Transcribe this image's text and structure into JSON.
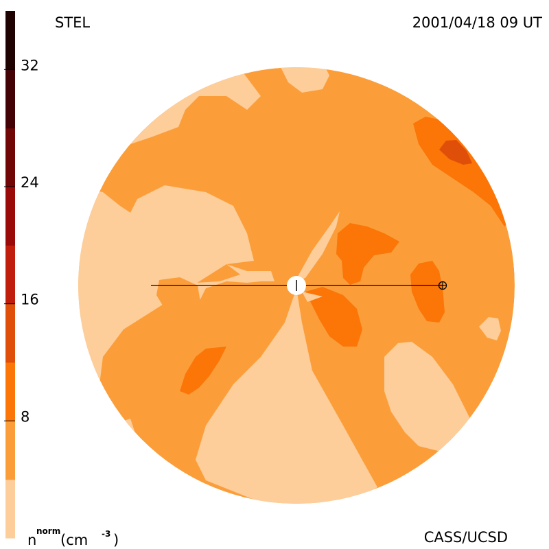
{
  "header": {
    "instrument": "STEL",
    "timestamp": "2001/04/18 09 UT"
  },
  "footer": {
    "credit": "CASS/UCSD",
    "unit_main": "n",
    "unit_sup": "norm",
    "unit_paren_open": " (cm",
    "unit_exp": "-3",
    "unit_paren_close": ")"
  },
  "chart_data": {
    "type": "heatmap",
    "title": "STEL",
    "subtitle": "2001/04/18 09 UT",
    "quantity": "n norm (cm^-3)",
    "colorbar": {
      "min": 0,
      "max": 36,
      "ticks": [
        8,
        16,
        24,
        32
      ],
      "tick_labels": [
        "8",
        "16",
        "24",
        "32"
      ],
      "levels": [
        {
          "from": 0,
          "to": 4,
          "color": "#fdcd9a"
        },
        {
          "from": 4,
          "to": 8,
          "color": "#fb9e3a"
        },
        {
          "from": 8,
          "to": 12,
          "color": "#fb7507"
        },
        {
          "from": 12,
          "to": 16,
          "color": "#e04f0a"
        },
        {
          "from": 16,
          "to": 20,
          "color": "#c01d0c"
        },
        {
          "from": 20,
          "to": 24,
          "color": "#9a0a08"
        },
        {
          "from": 24,
          "to": 28,
          "color": "#710606"
        },
        {
          "from": 28,
          "to": 32,
          "color": "#430306"
        },
        {
          "from": 32,
          "to": 36,
          "color": "#1f0303"
        }
      ]
    },
    "markers": {
      "sun": "sun-symbol",
      "earth": "earth-symbol"
    }
  }
}
